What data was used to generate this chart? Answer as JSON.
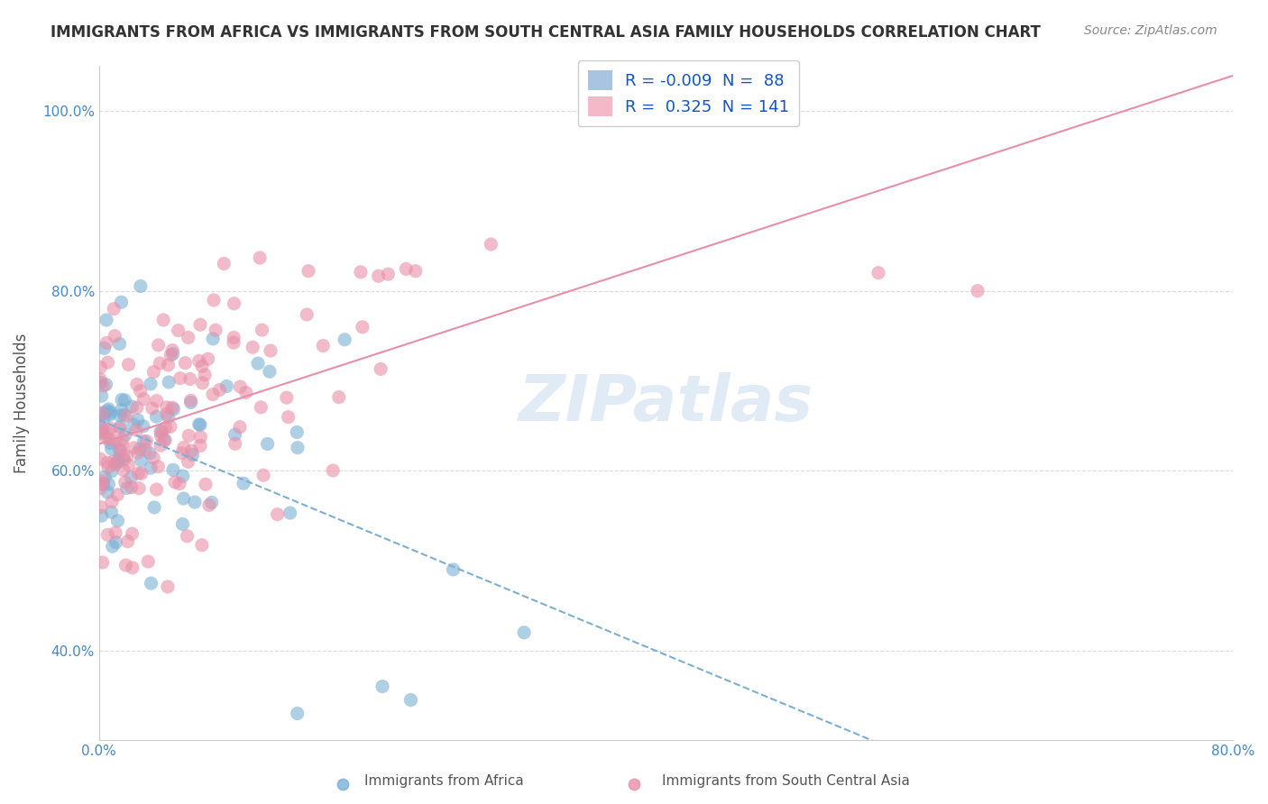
{
  "title": "IMMIGRANTS FROM AFRICA VS IMMIGRANTS FROM SOUTH CENTRAL ASIA FAMILY HOUSEHOLDS CORRELATION CHART",
  "source": "Source: ZipAtlas.com",
  "xlabel_bottom": "",
  "ylabel": "Family Households",
  "legend_entries": [
    {
      "label": "R = -0.009  N =  88",
      "color": "#a8c4e0",
      "marker_color": "#7bafd4"
    },
    {
      "label": "R =  0.325  N = 141",
      "color": "#f4b8c8",
      "marker_color": "#e88fa8"
    }
  ],
  "legend_labels": [
    "Immigrants from Africa",
    "Immigrants from South Central Asia"
  ],
  "africa_color": "#7bafd4",
  "sca_color": "#e88fa8",
  "africa_R": -0.009,
  "africa_N": 88,
  "sca_R": 0.325,
  "sca_N": 141,
  "xlim": [
    0.0,
    0.8
  ],
  "ylim": [
    0.3,
    1.05
  ],
  "x_ticks": [
    0.0,
    0.1,
    0.2,
    0.3,
    0.4,
    0.5,
    0.6,
    0.7,
    0.8
  ],
  "x_tick_labels": [
    "0.0%",
    "",
    "",
    "",
    "",
    "",
    "",
    "",
    "80.0%"
  ],
  "y_ticks": [
    0.4,
    0.6,
    0.8,
    1.0
  ],
  "y_tick_labels": [
    "40.0%",
    "60.0%",
    "80.0%",
    "100.0%"
  ],
  "watermark": "ZIPatlas",
  "background_color": "#ffffff",
  "grid_color": "#cccccc",
  "title_color": "#333333",
  "axis_label_color": "#555555",
  "tick_color": "#4488cc"
}
